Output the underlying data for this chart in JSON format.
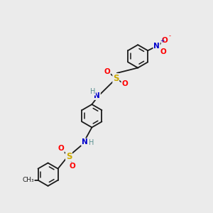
{
  "background_color": "#ebebeb",
  "bond_color": "#1a1a1a",
  "atom_colors": {
    "N": "#0000cc",
    "O": "#ff0000",
    "S": "#ccaa00",
    "C": "#1a1a1a",
    "H": "#5a9090"
  },
  "figsize": [
    3.0,
    3.0
  ],
  "dpi": 100,
  "ring_r": 0.55
}
